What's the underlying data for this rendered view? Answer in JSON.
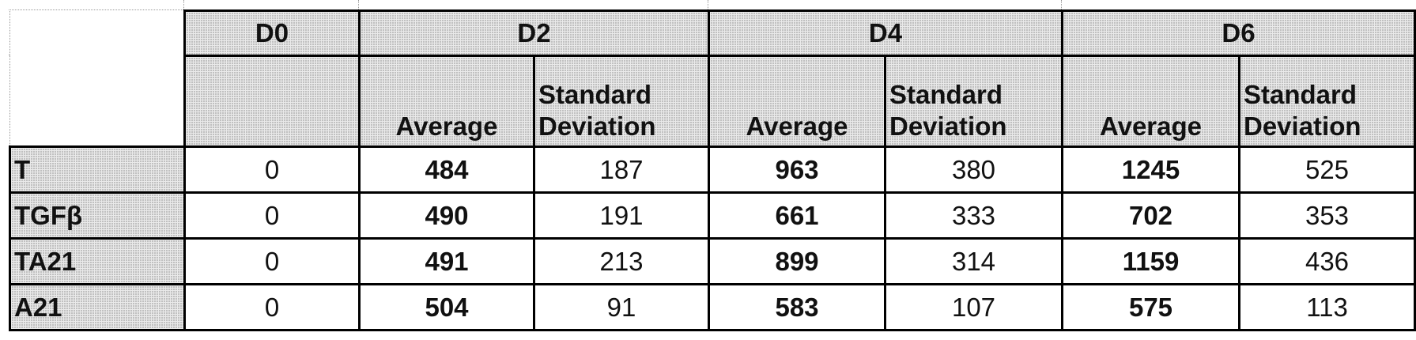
{
  "table": {
    "day_headers": [
      "D0",
      "D2",
      "D4",
      "D6"
    ],
    "sub_headers": {
      "average": "Average",
      "std_line1": "Standard",
      "std_line2": "Deviation"
    },
    "rows": [
      {
        "label": "T",
        "d0": "0",
        "d2_avg": "484",
        "d2_sd": "187",
        "d4_avg": "963",
        "d4_sd": "380",
        "d6_avg": "1245",
        "d6_sd": "525"
      },
      {
        "label": "TGFβ",
        "d0": "0",
        "d2_avg": "490",
        "d2_sd": "191",
        "d4_avg": "661",
        "d4_sd": "333",
        "d6_avg": "702",
        "d6_sd": "353"
      },
      {
        "label": "TA21",
        "d0": "0",
        "d2_avg": "491",
        "d2_sd": "213",
        "d4_avg": "899",
        "d4_sd": "314",
        "d6_avg": "1159",
        "d6_sd": "436"
      },
      {
        "label": "A21",
        "d0": "0",
        "d2_avg": "504",
        "d2_sd": "91",
        "d4_avg": "583",
        "d4_sd": "107",
        "d6_avg": "575",
        "d6_sd": "113"
      }
    ]
  }
}
